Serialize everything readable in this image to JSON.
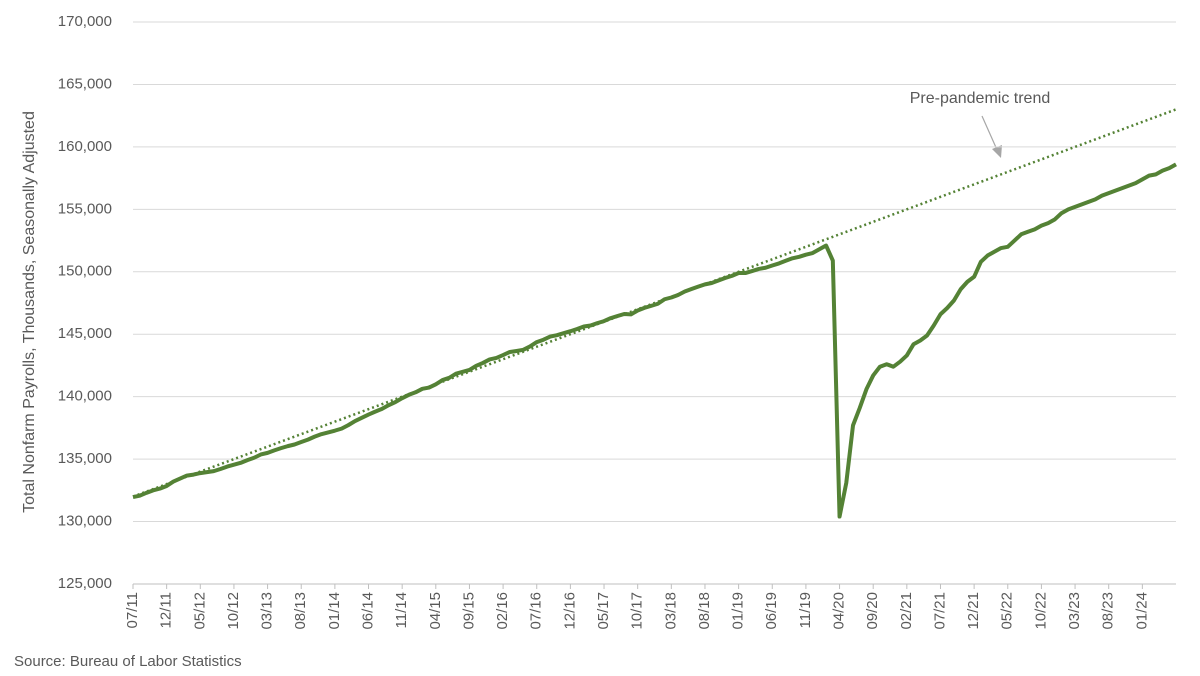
{
  "chart_data": {
    "type": "line",
    "y_axis_label": "Total Nonfarm Payrolls, Thousands, Seasonally Adjusted",
    "annotation": "Pre-pandemic trend",
    "source": "Source: Bureau of Labor Statistics",
    "categories": [
      "07/11",
      null,
      null,
      null,
      null,
      "12/11",
      null,
      null,
      null,
      null,
      "05/12",
      null,
      null,
      null,
      null,
      "10/12",
      null,
      null,
      null,
      null,
      "03/13",
      null,
      null,
      null,
      null,
      "08/13",
      null,
      null,
      null,
      null,
      "01/14",
      null,
      null,
      null,
      null,
      "06/14",
      null,
      null,
      null,
      null,
      "11/14",
      null,
      null,
      null,
      null,
      "04/15",
      null,
      null,
      null,
      null,
      "09/15",
      null,
      null,
      null,
      null,
      "02/16",
      null,
      null,
      null,
      null,
      "07/16",
      null,
      null,
      null,
      null,
      "12/16",
      null,
      null,
      null,
      null,
      "05/17",
      null,
      null,
      null,
      null,
      "10/17",
      null,
      null,
      null,
      null,
      "03/18",
      null,
      null,
      null,
      null,
      "08/18",
      null,
      null,
      null,
      null,
      "01/19",
      null,
      null,
      null,
      null,
      "06/19",
      null,
      null,
      null,
      null,
      "11/19",
      null,
      null,
      null,
      null,
      "04/20",
      null,
      null,
      null,
      null,
      "09/20",
      null,
      null,
      null,
      null,
      "02/21",
      null,
      null,
      null,
      null,
      "07/21",
      null,
      null,
      null,
      null,
      "12/21",
      null,
      null,
      null,
      null,
      "05/22",
      null,
      null,
      null,
      null,
      "10/22",
      null,
      null,
      null,
      null,
      "03/23",
      null,
      null,
      null,
      null,
      "08/23",
      null,
      null,
      null,
      null,
      "01/24",
      null,
      null,
      null,
      null,
      null
    ],
    "series": [
      {
        "color": "#548235",
        "style": "solid",
        "values": [
          131960,
          132070,
          132300,
          132500,
          132640,
          132850,
          133200,
          133440,
          133680,
          133760,
          133880,
          133960,
          134040,
          134210,
          134400,
          134550,
          134700,
          134920,
          135110,
          135370,
          135500,
          135700,
          135880,
          136040,
          136170,
          136370,
          136560,
          136800,
          137000,
          137140,
          137280,
          137440,
          137720,
          138050,
          138310,
          138570,
          138800,
          139020,
          139320,
          139570,
          139880,
          140150,
          140350,
          140630,
          140730,
          140990,
          141330,
          141510,
          141840,
          141990,
          142140,
          142470,
          142700,
          142980,
          143100,
          143330,
          143580,
          143660,
          143750,
          144020,
          144370,
          144560,
          144810,
          144920,
          145080,
          145240,
          145420,
          145620,
          145700,
          145890,
          146050,
          146290,
          146460,
          146620,
          146590,
          146900,
          147110,
          147270,
          147440,
          147800,
          147940,
          148140,
          148420,
          148620,
          148810,
          148990,
          149100,
          149300,
          149500,
          149670,
          149900,
          149900,
          150060,
          150230,
          150320,
          150500,
          150670,
          150880,
          151080,
          151200,
          151370,
          151500,
          151800,
          152100,
          150900,
          130400,
          133100,
          137700,
          139100,
          140600,
          141700,
          142400,
          142600,
          142400,
          142800,
          143300,
          144200,
          144500,
          144900,
          145700,
          146600,
          147100,
          147700,
          148600,
          149200,
          149600,
          150800,
          151300,
          151600,
          151900,
          152000,
          152500,
          153000,
          153200,
          153400,
          153700,
          153900,
          154200,
          154700,
          155000,
          155200,
          155400,
          155600,
          155800,
          156100,
          156300,
          156500,
          156700,
          156900,
          157100,
          157400,
          157700,
          157800,
          158100,
          158300,
          158600
        ]
      },
      {
        "color": "#548235",
        "style": "dotted",
        "values": [
          132000,
          132200,
          132400,
          132600,
          132800,
          133000,
          133200,
          133400,
          133600,
          133800,
          134000,
          134200,
          134400,
          134600,
          134800,
          135000,
          135200,
          135400,
          135600,
          135800,
          136000,
          136200,
          136400,
          136600,
          136800,
          137000,
          137200,
          137400,
          137600,
          137800,
          138000,
          138200,
          138400,
          138600,
          138800,
          139000,
          139200,
          139400,
          139600,
          139800,
          140000,
          140200,
          140400,
          140600,
          140800,
          141000,
          141200,
          141400,
          141600,
          141800,
          142000,
          142200,
          142400,
          142600,
          142800,
          143000,
          143200,
          143400,
          143600,
          143800,
          144000,
          144200,
          144400,
          144600,
          144800,
          145000,
          145200,
          145400,
          145600,
          145800,
          146000,
          146200,
          146400,
          146600,
          146800,
          147000,
          147200,
          147400,
          147600,
          147800,
          148000,
          148200,
          148400,
          148600,
          148800,
          149000,
          149200,
          149400,
          149600,
          149800,
          150000,
          150200,
          150400,
          150600,
          150800,
          151000,
          151200,
          151400,
          151600,
          151800,
          152000,
          152200,
          152400,
          152600,
          152800,
          153000,
          153200,
          153400,
          153600,
          153800,
          154000,
          154200,
          154400,
          154600,
          154800,
          155000,
          155200,
          155400,
          155600,
          155800,
          156000,
          156200,
          156400,
          156600,
          156800,
          157000,
          157200,
          157400,
          157600,
          157800,
          158000,
          158200,
          158400,
          158600,
          158800,
          159000,
          159200,
          159400,
          159600,
          159800,
          160000,
          160200,
          160400,
          160600,
          160800,
          161000,
          161200,
          161400,
          161600,
          161800,
          162000,
          162200,
          162400,
          162600,
          162800,
          163000
        ]
      }
    ],
    "ylim": [
      125000,
      170000
    ],
    "yticks": [
      {
        "value": 125000,
        "label": "125,000"
      },
      {
        "value": 130000,
        "label": "130,000"
      },
      {
        "value": 135000,
        "label": "135,000"
      },
      {
        "value": 140000,
        "label": "140,000"
      },
      {
        "value": 145000,
        "label": "145,000"
      },
      {
        "value": 150000,
        "label": "150,000"
      },
      {
        "value": 155000,
        "label": "155,000"
      },
      {
        "value": 160000,
        "label": "160,000"
      },
      {
        "value": 165000,
        "label": "165,000"
      },
      {
        "value": 170000,
        "label": "170,000"
      }
    ],
    "grid": true
  }
}
